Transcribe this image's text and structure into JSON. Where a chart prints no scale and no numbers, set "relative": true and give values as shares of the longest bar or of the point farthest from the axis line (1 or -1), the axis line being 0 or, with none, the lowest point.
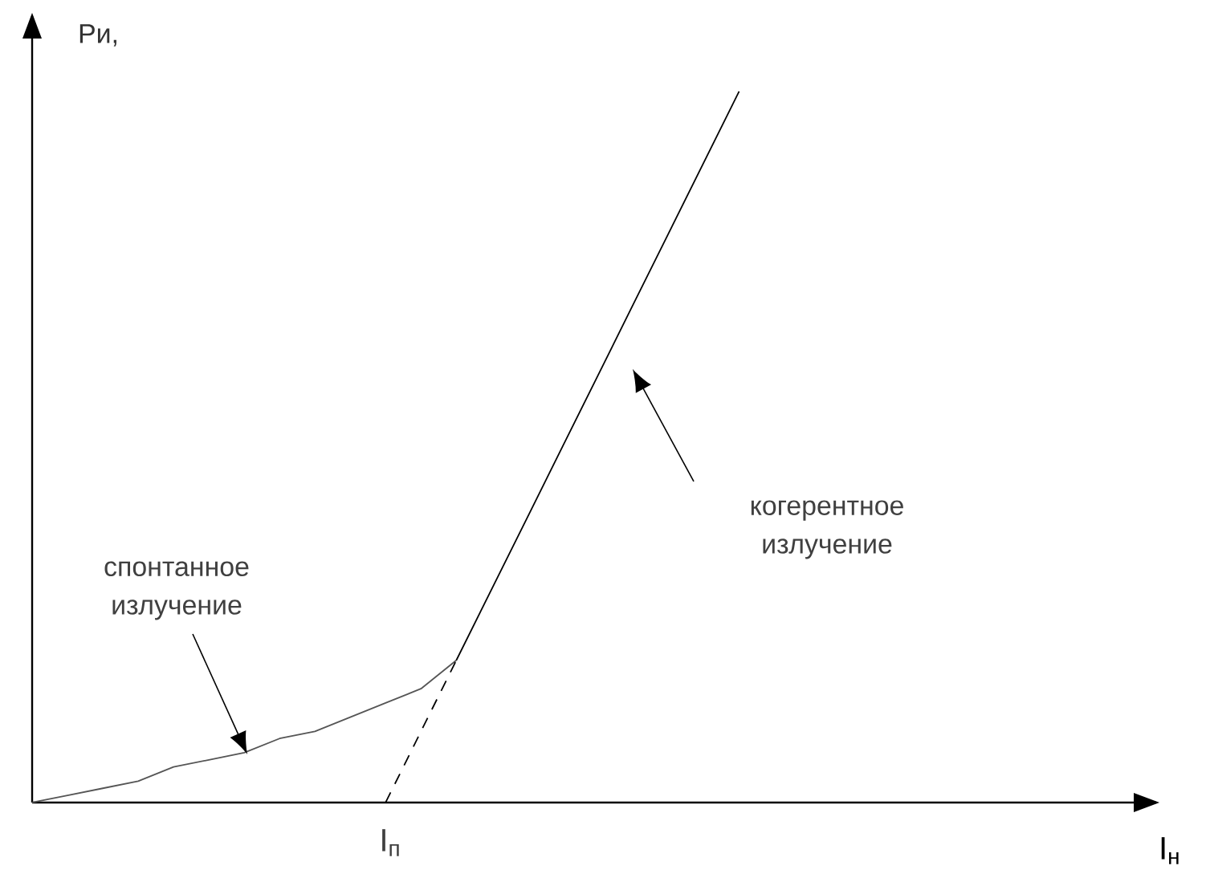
{
  "chart_data": {
    "type": "line",
    "relative": true,
    "ylabel": "Pи,",
    "xlabel": "I$_{н}$",
    "marker": "none",
    "categories": [
      null,
      null,
      null,
      null,
      null,
      null,
      null,
      null,
      null,
      null,
      null,
      null,
      null,
      null,
      null,
      null,
      null,
      null,
      null,
      null,
      null,
      null,
      null,
      null,
      null,
      null,
      null,
      null,
      null,
      null,
      null,
      null
    ],
    "series": [
      {
        "color": "#555555",
        "line_style": "solid",
        "values": [
          0,
          0.01,
          0.02,
          0.03,
          0.05,
          0.06,
          0.07,
          0.09,
          0.1,
          0.12,
          0.14,
          0.16,
          0.2,
          null,
          null,
          null,
          null,
          null,
          null,
          null,
          null,
          null,
          null,
          null,
          null,
          null,
          null,
          null,
          null,
          null,
          null,
          null
        ]
      },
      {
        "color": "#000000",
        "line_style": "solid",
        "values": [
          null,
          null,
          null,
          null,
          null,
          null,
          null,
          null,
          null,
          null,
          null,
          null,
          0.2,
          0.3,
          0.4,
          0.5,
          0.6,
          0.7,
          0.8,
          0.9,
          1.0,
          null,
          null,
          null,
          null,
          null,
          null,
          null,
          null,
          null,
          null,
          null
        ]
      },
      {
        "color": "#000000",
        "line_style": "dashed",
        "values": [
          null,
          null,
          null,
          null,
          null,
          null,
          null,
          null,
          null,
          null,
          0,
          0.1,
          0.2,
          null,
          null,
          null,
          null,
          null,
          null,
          null,
          null,
          null,
          null,
          null,
          null,
          null,
          null,
          null,
          null,
          null,
          null,
          null
        ]
      }
    ],
    "annotations": [
      "спонтанное излучение",
      "когерентное излучение",
      "I$_{п}$"
    ]
  }
}
